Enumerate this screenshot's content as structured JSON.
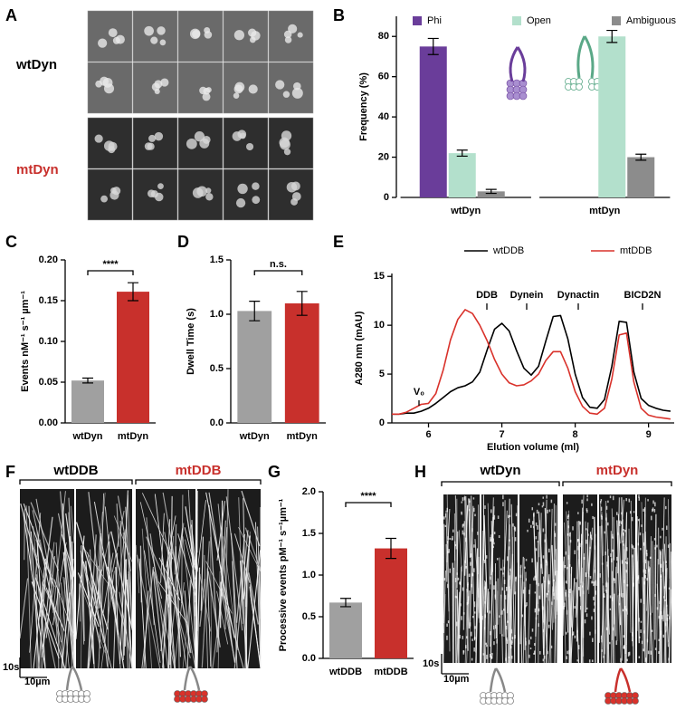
{
  "panel_labels": [
    "A",
    "B",
    "C",
    "D",
    "E",
    "F",
    "G",
    "H"
  ],
  "micrograph_rows": [
    "wtDyn",
    "mtDyn"
  ],
  "kymograph_F": {
    "headers": [
      "wtDDB",
      "mtDDB"
    ],
    "time_scale": "10s",
    "length_scale": "10µm"
  },
  "kymograph_H": {
    "headers": [
      "wtDyn",
      "mtDyn"
    ],
    "time_scale": "10s",
    "length_scale": "10µm"
  },
  "chart_data": [
    {
      "type": "bar",
      "ylabel": "Frequency (%)",
      "categories": [
        "wtDyn",
        "mtDyn"
      ],
      "category_colors": [
        "#000000",
        "#c8302c"
      ],
      "series": [
        {
          "name": "Phi",
          "color": "#6a3d9a",
          "values": [
            75,
            0
          ],
          "errors": [
            4,
            0
          ]
        },
        {
          "name": "Open",
          "color": "#b3e0cc",
          "values": [
            22,
            80
          ],
          "errors": [
            1.5,
            3
          ]
        },
        {
          "name": "Ambiguous",
          "color": "#8c8c8c",
          "values": [
            3,
            20
          ],
          "errors": [
            1,
            1.5
          ]
        }
      ],
      "ylim": [
        0,
        90
      ],
      "yticks": [
        0,
        20,
        40,
        60,
        80
      ],
      "legend": "top"
    },
    {
      "type": "bar",
      "ylabel": "Events nM⁻¹ s⁻¹ µm⁻¹",
      "categories": [
        "wtDyn",
        "mtDyn"
      ],
      "category_colors": [
        "#000000",
        "#c8302c"
      ],
      "values": [
        0.052,
        0.161
      ],
      "errors": [
        0.003,
        0.011
      ],
      "colors": [
        "#a0a0a0",
        "#c8302c"
      ],
      "annotation": "****",
      "ylim": [
        0,
        0.2
      ],
      "yticks": [
        {
          "value": 0,
          "label": "0.00"
        },
        {
          "value": 0.05,
          "label": "0.05"
        },
        {
          "value": 0.1,
          "label": "0.10"
        },
        {
          "value": 0.15,
          "label": "0.15"
        },
        {
          "value": 0.2,
          "label": "0.20"
        }
      ]
    },
    {
      "type": "bar",
      "ylabel": "Dwell Time (s)",
      "categories": [
        "wtDyn",
        "mtDyn"
      ],
      "category_colors": [
        "#000000",
        "#c8302c"
      ],
      "values": [
        1.03,
        1.1
      ],
      "errors": [
        0.09,
        0.11
      ],
      "colors": [
        "#a0a0a0",
        "#c8302c"
      ],
      "annotation": "n.s.",
      "ylim": [
        0,
        1.5
      ],
      "yticks": [
        {
          "value": 0,
          "label": "0.0"
        },
        {
          "value": 0.5,
          "label": "0.5"
        },
        {
          "value": 1,
          "label": "1.0"
        },
        {
          "value": 1.5,
          "label": "1.5"
        }
      ]
    },
    {
      "type": "line",
      "xlabel": "Elution volume (ml)",
      "ylabel": "A280 nm (mAU)",
      "x": [
        5.5,
        5.6,
        5.7,
        5.8,
        5.9,
        6.0,
        6.1,
        6.2,
        6.3,
        6.4,
        6.5,
        6.6,
        6.7,
        6.8,
        6.9,
        7.0,
        7.1,
        7.2,
        7.3,
        7.4,
        7.5,
        7.6,
        7.7,
        7.8,
        7.9,
        8.0,
        8.1,
        8.2,
        8.3,
        8.4,
        8.5,
        8.6,
        8.7,
        8.8,
        8.9,
        9.0,
        9.1,
        9.2,
        9.3
      ],
      "series": [
        {
          "name": "wtDDB",
          "color": "#000000",
          "values": [
            0.9,
            0.9,
            1.0,
            1.0,
            1.2,
            1.5,
            2.0,
            2.6,
            3.2,
            3.6,
            3.8,
            4.2,
            5.2,
            7.5,
            9.6,
            10.2,
            9.4,
            7.4,
            5.6,
            4.9,
            5.8,
            8.4,
            10.9,
            11.0,
            8.6,
            5.0,
            2.6,
            1.6,
            1.5,
            2.4,
            5.8,
            10.4,
            10.3,
            5.2,
            2.5,
            1.8,
            1.5,
            1.3,
            1.2
          ]
        },
        {
          "name": "mtDDB",
          "color": "#d9322b",
          "values": [
            0.9,
            0.9,
            1.1,
            1.5,
            1.9,
            2.0,
            3.0,
            5.4,
            8.5,
            10.6,
            11.6,
            11.2,
            10.0,
            8.4,
            6.5,
            5.0,
            4.1,
            3.8,
            3.9,
            4.3,
            5.0,
            6.4,
            7.3,
            7.3,
            5.6,
            3.2,
            1.7,
            1.0,
            0.9,
            1.5,
            4.5,
            9.0,
            9.2,
            4.2,
            1.5,
            0.8,
            0.6,
            0.5,
            0.4
          ]
        }
      ],
      "peak_labels": [
        "DDB",
        "Dynein",
        "Dynactin",
        "BICD2N"
      ],
      "void_label": "V₀",
      "xlim": [
        5.5,
        9.35
      ],
      "xticks": [
        6,
        7,
        8,
        9
      ],
      "ylim": [
        0,
        15.3
      ],
      "yticks": [
        0,
        5,
        10,
        15
      ],
      "legend": "top"
    },
    {
      "type": "bar",
      "ylabel": "Processive events pM⁻¹ s⁻¹µm⁻¹",
      "categories": [
        "wtDDB",
        "mtDDB"
      ],
      "category_colors": [
        "#000000",
        "#c8302c"
      ],
      "values": [
        0.67,
        1.32
      ],
      "errors": [
        0.05,
        0.12
      ],
      "colors": [
        "#a0a0a0",
        "#c8302c"
      ],
      "annotation": "****",
      "ylim": [
        0,
        2.0
      ],
      "yticks": [
        {
          "value": 0,
          "label": "0.0"
        },
        {
          "value": 0.5,
          "label": "0.5"
        },
        {
          "value": 1,
          "label": "1.0"
        },
        {
          "value": 1.5,
          "label": "1.5"
        },
        {
          "value": 2,
          "label": "2.0"
        }
      ]
    }
  ]
}
